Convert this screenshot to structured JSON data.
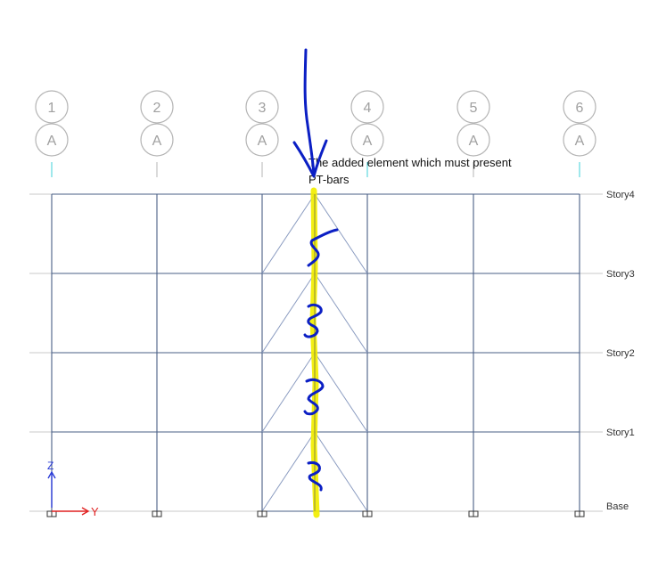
{
  "grid_bubbles": [
    {
      "number": "1",
      "letter": "A"
    },
    {
      "number": "2",
      "letter": "A"
    },
    {
      "number": "3",
      "letter": "A"
    },
    {
      "number": "4",
      "letter": "A"
    },
    {
      "number": "5",
      "letter": "A"
    },
    {
      "number": "6",
      "letter": "A"
    }
  ],
  "stories": [
    "Story4",
    "Story3",
    "Story2",
    "Story1",
    "Base"
  ],
  "annotation": {
    "line1": "The added element which must present",
    "line2": "PT-bars"
  },
  "axes": {
    "vertical": "Z",
    "horizontal": "Y"
  },
  "colors": {
    "frame": "#4a5f86",
    "bubble": "#b4b4b4",
    "story_line": "#c8c8c8",
    "highlight": "#f2ee00",
    "ink": "#0b1fc4",
    "axis_z": "#2a3bd6",
    "axis_y": "#e02020",
    "cyan_tick": "#3fd0d8"
  }
}
